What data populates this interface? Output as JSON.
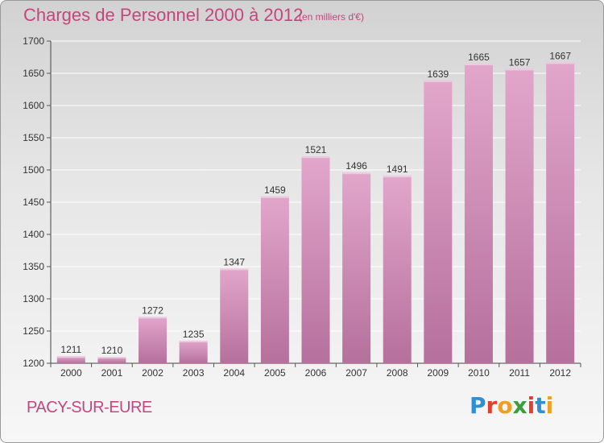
{
  "header": {
    "title": "Charges de Personnel 2000 à 2012",
    "subtitle": "(en milliers d'€)"
  },
  "footer": {
    "town": "PACY-SUR-EURE",
    "logo": "Proxiti"
  },
  "colors": {
    "accent": "#c4467e",
    "bar_top": "#e0a3c8",
    "bar_bottom": "#b8719e"
  },
  "chart_data": {
    "type": "bar",
    "title": "Charges de Personnel 2000 à 2012",
    "subtitle": "(en milliers d'€)",
    "xlabel": "",
    "ylabel": "",
    "categories": [
      "2000",
      "2001",
      "2002",
      "2003",
      "2004",
      "2005",
      "2006",
      "2007",
      "2008",
      "2009",
      "2010",
      "2011",
      "2012"
    ],
    "values": [
      1211,
      1210,
      1272,
      1235,
      1347,
      1459,
      1521,
      1496,
      1491,
      1639,
      1665,
      1657,
      1667
    ],
    "ylim": [
      1200,
      1700
    ],
    "yticks": [
      1200,
      1250,
      1300,
      1350,
      1400,
      1450,
      1500,
      1550,
      1600,
      1650,
      1700
    ],
    "grid": true,
    "data_labels": true
  }
}
